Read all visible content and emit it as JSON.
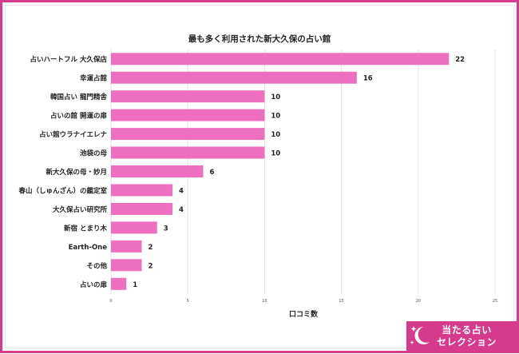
{
  "chart_data": {
    "type": "bar",
    "orientation": "horizontal",
    "title": "最も多く利用された新大久保の占い館",
    "xlabel": "口コミ数",
    "ylabel": "",
    "xlim": [
      0,
      25
    ],
    "xticks": [
      0,
      5,
      10,
      15,
      20,
      25
    ],
    "grid": true,
    "categories": [
      "占いハートフル 大久保店",
      "幸運占館",
      "韓国占い 龍門精舎",
      "占いの館 開運の扉",
      "占い館ウラナイエレナ",
      "池袋の母",
      "新大久保の母・妙月",
      "春山（しゅんざん）の鑑定室",
      "大久保占い研究所",
      "新宿 とまり木",
      "Earth-One",
      "その他",
      "占いの扉"
    ],
    "values": [
      22,
      16,
      10,
      10,
      10,
      10,
      6,
      4,
      4,
      3,
      2,
      2,
      1
    ],
    "bar_color": "#ee6fc0"
  },
  "brand": {
    "line1": "当たる占い",
    "line2": "セレクション",
    "icon": "moon-stars-icon",
    "color": "#d63a8c"
  }
}
